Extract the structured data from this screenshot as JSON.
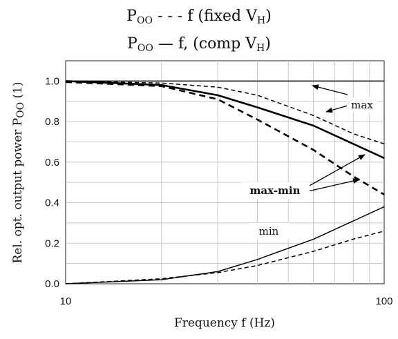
{
  "title": {
    "line1": {
      "main": "P",
      "sub": "OO",
      "rest": " - - - f (fixed V",
      "sub2": "H",
      "close": ")"
    },
    "line2": {
      "main": "P",
      "sub": "OO",
      "rest": " — f, (comp V",
      "sub2": "H",
      "close": ")"
    }
  },
  "axes": {
    "xlabel": "Frequency f (Hz)",
    "ylabel": {
      "main": "Rel. opt. output power P",
      "sub": "OO",
      "close": " (1)"
    }
  },
  "annotations": {
    "max": "max",
    "max_min": "max-min",
    "min": "min"
  },
  "chart_data": {
    "type": "line",
    "xscale": "log",
    "xlim": [
      10,
      100
    ],
    "ylim": [
      0,
      1.1
    ],
    "xticks": [
      10,
      100
    ],
    "xtick_labels": [
      "10",
      "100"
    ],
    "yticks": [
      0,
      0.2,
      0.4,
      0.6,
      0.8,
      1.0
    ],
    "ytick_labels": [
      "0.0",
      "0.2",
      "0.4",
      "0.6",
      "0.8",
      "1.0"
    ],
    "grid": true,
    "series": [
      {
        "group": "max",
        "style": "solid-thin",
        "x": [
          10,
          100
        ],
        "y": [
          1.0,
          1.0
        ]
      },
      {
        "group": "max",
        "style": "dashed-thin",
        "x": [
          10,
          20,
          30,
          40,
          60,
          80,
          100
        ],
        "y": [
          1.0,
          0.99,
          0.97,
          0.93,
          0.83,
          0.74,
          0.69
        ]
      },
      {
        "group": "max-min",
        "style": "solid-thick",
        "x": [
          10,
          20,
          30,
          40,
          60,
          80,
          100
        ],
        "y": [
          1.0,
          0.98,
          0.93,
          0.87,
          0.78,
          0.69,
          0.62
        ]
      },
      {
        "group": "max-min",
        "style": "dashed-thick",
        "x": [
          10,
          20,
          30,
          40,
          60,
          80,
          100
        ],
        "y": [
          0.995,
          0.975,
          0.91,
          0.81,
          0.66,
          0.53,
          0.44
        ]
      },
      {
        "group": "min",
        "style": "solid-thin",
        "x": [
          10,
          20,
          30,
          40,
          60,
          80,
          100
        ],
        "y": [
          0.0,
          0.02,
          0.06,
          0.12,
          0.22,
          0.31,
          0.38
        ]
      },
      {
        "group": "min",
        "style": "dashed-thin",
        "x": [
          10,
          20,
          30,
          40,
          60,
          80,
          100
        ],
        "y": [
          0.0,
          0.025,
          0.055,
          0.09,
          0.16,
          0.22,
          0.26
        ]
      }
    ]
  }
}
